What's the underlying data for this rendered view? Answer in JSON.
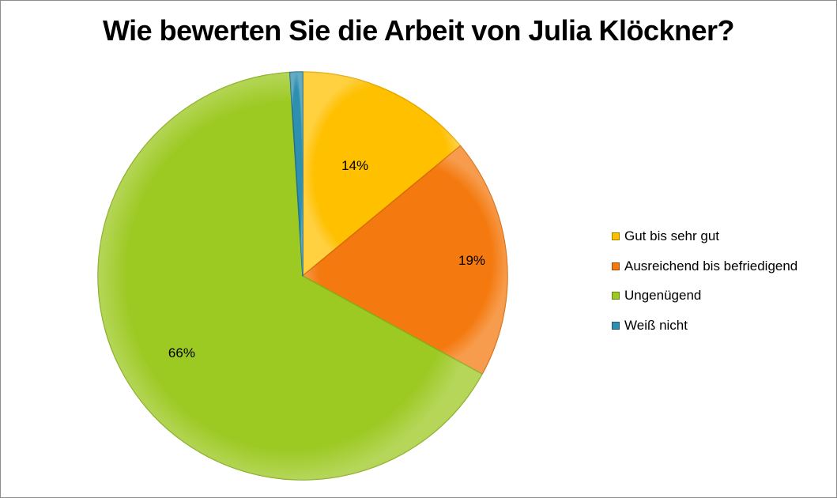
{
  "chart_data": {
    "type": "pie",
    "title": "Wie bewerten Sie die Arbeit von Julia Klöckner?",
    "legend_position": "right",
    "slices": [
      {
        "label": "Gut bis sehr gut",
        "value": 14,
        "display": "14%",
        "color": "#ffc000",
        "stroke": "#e6a800"
      },
      {
        "label": "Ausreichend bis befriedigend",
        "value": 19,
        "display": "19%",
        "color": "#f47a10",
        "stroke": "#d96a08"
      },
      {
        "label": "Ungenügend",
        "value": 66,
        "display": "66%",
        "color": "#9dc923",
        "stroke": "#86ad18"
      },
      {
        "label": "Weiß nicht",
        "value": 1,
        "display": "",
        "color": "#2e8fae",
        "stroke": "#1f7290"
      }
    ]
  }
}
